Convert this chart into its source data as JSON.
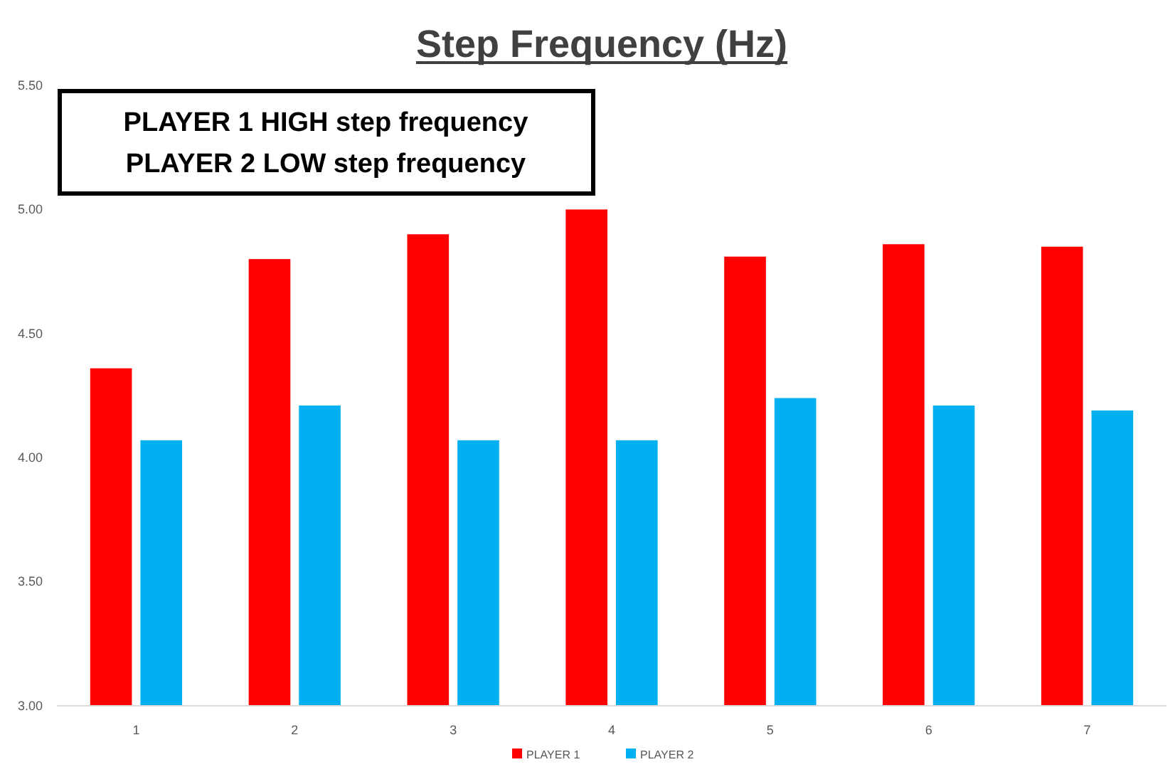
{
  "chart_data": {
    "type": "bar",
    "title": "Step Frequency (Hz)",
    "categories": [
      "1",
      "2",
      "3",
      "4",
      "5",
      "6",
      "7"
    ],
    "series": [
      {
        "name": "PLAYER 1",
        "color": "#ff0000",
        "values": [
          4.36,
          4.8,
          4.9,
          5.0,
          4.81,
          4.86,
          4.85
        ]
      },
      {
        "name": "PLAYER 2",
        "color": "#00b0f0",
        "values": [
          4.07,
          4.21,
          4.07,
          4.07,
          4.24,
          4.21,
          4.19
        ]
      }
    ],
    "ylim": [
      3,
      5.5
    ],
    "yticks": [
      {
        "value": 3,
        "label": "3.00"
      },
      {
        "value": 3.5,
        "label": "3.50"
      },
      {
        "value": 4,
        "label": "4.00"
      },
      {
        "value": 4.5,
        "label": "4.50"
      },
      {
        "value": 5,
        "label": "5.00"
      },
      {
        "value": 5.5,
        "label": "5.50"
      }
    ],
    "annotations": [
      "PLAYER 1 HIGH step frequency",
      "PLAYER 2 LOW step frequency"
    ],
    "grid": false,
    "legend": "bottom"
  }
}
